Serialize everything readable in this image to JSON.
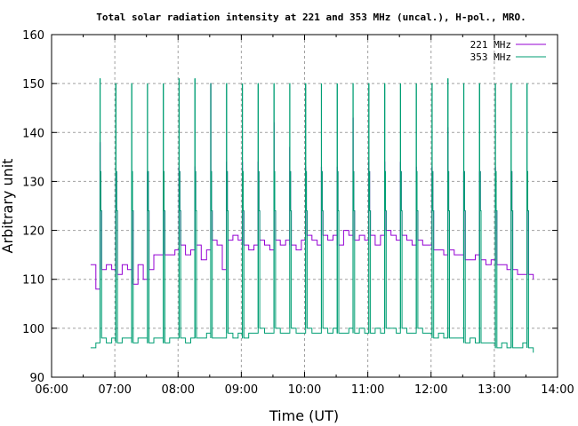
{
  "chart_data": {
    "type": "line",
    "title": "Total solar radiation intensity at 221 and 353 MHz (uncal.), H-pol., MRO.",
    "xlabel": "Time (UT)",
    "ylabel": "Arbitrary unit",
    "xlim_hours": [
      6,
      14
    ],
    "ylim": [
      90,
      160
    ],
    "x_ticks": [
      "06:00",
      "07:00",
      "08:00",
      "09:00",
      "10:00",
      "11:00",
      "12:00",
      "13:00",
      "14:00"
    ],
    "y_ticks": [
      "90",
      "100",
      "110",
      "120",
      "130",
      "140",
      "150",
      "160"
    ],
    "grid": true,
    "legend_position": "top-right",
    "baseline_start_hour": 6.6167,
    "baseline_step_minutes": 5,
    "calibration_start_hour": 6.7667,
    "calibration_step_minutes": 15,
    "calibration_plateau": [
      124,
      132
    ],
    "series": [
      {
        "name": "221 MHz",
        "color": "#9400d3",
        "values": [
          113,
          108,
          112,
          113,
          112,
          111,
          113,
          112,
          109,
          113,
          110,
          112,
          115,
          115,
          115,
          115,
          116,
          117,
          115,
          116,
          117,
          114,
          116,
          118,
          117,
          112,
          118,
          119,
          118,
          117,
          116,
          117,
          118,
          117,
          116,
          118,
          117,
          118,
          117,
          116,
          118,
          119,
          118,
          117,
          119,
          118,
          119,
          117,
          120,
          119,
          118,
          119,
          118,
          119,
          117,
          119,
          120,
          119,
          118,
          119,
          118,
          117,
          118,
          117,
          117,
          116,
          116,
          115,
          116,
          115,
          115,
          114,
          114,
          115,
          114,
          113,
          114,
          113,
          113,
          112,
          112,
          111,
          111,
          111,
          110
        ],
        "calibration_peaks": [
          138,
          131,
          132,
          132,
          132,
          133,
          133,
          150,
          134,
          134,
          134,
          142,
          137,
          133,
          133,
          133,
          143,
          134,
          134,
          134,
          133,
          133,
          141,
          132,
          132,
          133,
          132,
          132
        ]
      },
      {
        "name": "353 MHz",
        "color": "#009e73",
        "values": [
          96,
          97,
          98,
          97,
          98,
          97,
          98,
          98,
          97,
          98,
          98,
          97,
          98,
          98,
          97,
          98,
          98,
          98,
          97,
          98,
          98,
          98,
          99,
          98,
          98,
          98,
          99,
          98,
          99,
          98,
          99,
          99,
          100,
          99,
          99,
          100,
          99,
          99,
          100,
          99,
          99,
          100,
          99,
          99,
          100,
          99,
          100,
          99,
          99,
          100,
          99,
          100,
          99,
          99,
          100,
          99,
          100,
          100,
          99,
          100,
          99,
          99,
          100,
          99,
          99,
          98,
          99,
          98,
          98,
          98,
          98,
          97,
          98,
          97,
          97,
          97,
          97,
          96,
          97,
          96,
          96,
          96,
          97,
          96,
          95
        ],
        "calibration_peaks": [
          151,
          150,
          150,
          150,
          150,
          151,
          151,
          150,
          150,
          150,
          150,
          150,
          150,
          150,
          150,
          150,
          150,
          150,
          150,
          150,
          150,
          150,
          151,
          150,
          150,
          150,
          150,
          150
        ]
      }
    ]
  }
}
